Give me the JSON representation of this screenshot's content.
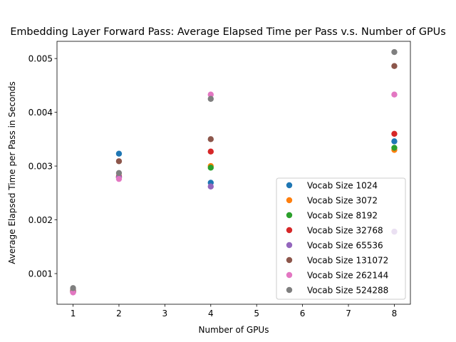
{
  "chart_data": {
    "type": "scatter",
    "title": "Embedding Layer Forward Pass: Average Elapsed Time per Pass v.s. Number of GPUs",
    "xlabel": "Number of GPUs",
    "ylabel": "Average Elapsed Time per Pass in Seconds",
    "xlim": [
      0.65,
      8.35
    ],
    "ylim": [
      0.00043,
      0.00532
    ],
    "xticks": [
      1,
      2,
      3,
      4,
      5,
      6,
      7,
      8
    ],
    "xtick_labels": [
      "1",
      "2",
      "3",
      "4",
      "5",
      "6",
      "7",
      "8"
    ],
    "yticks": [
      0.001,
      0.002,
      0.003,
      0.004,
      0.005
    ],
    "ytick_labels": [
      "0.001",
      "0.002",
      "0.003",
      "0.004",
      "0.005"
    ],
    "grid": false,
    "legend_position": "lower right",
    "x": [
      1,
      2,
      4,
      8
    ],
    "series": [
      {
        "name": "Vocab Size 1024",
        "color": "#1f77b4",
        "y": [
          0.00066,
          0.00323,
          0.00269,
          0.00346
        ]
      },
      {
        "name": "Vocab Size 3072",
        "color": "#ff7f0e",
        "y": [
          0.00066,
          0.00279,
          0.003,
          0.0033
        ]
      },
      {
        "name": "Vocab Size 8192",
        "color": "#2ca02c",
        "y": [
          0.00066,
          0.00279,
          0.00297,
          0.00334
        ]
      },
      {
        "name": "Vocab Size 32768",
        "color": "#d62728",
        "y": [
          0.00067,
          0.00281,
          0.00327,
          0.0036
        ]
      },
      {
        "name": "Vocab Size 65536",
        "color": "#9467bd",
        "y": [
          0.00066,
          0.00279,
          0.00262,
          0.00178
        ]
      },
      {
        "name": "Vocab Size 131072",
        "color": "#8c564b",
        "y": [
          0.00069,
          0.00309,
          0.0035,
          0.00486
        ]
      },
      {
        "name": "Vocab Size 262144",
        "color": "#e377c2",
        "y": [
          0.00065,
          0.00276,
          0.00433,
          0.00433
        ]
      },
      {
        "name": "Vocab Size 524288",
        "color": "#7f7f7f",
        "y": [
          0.00073,
          0.00287,
          0.00425,
          0.00512
        ]
      }
    ]
  }
}
